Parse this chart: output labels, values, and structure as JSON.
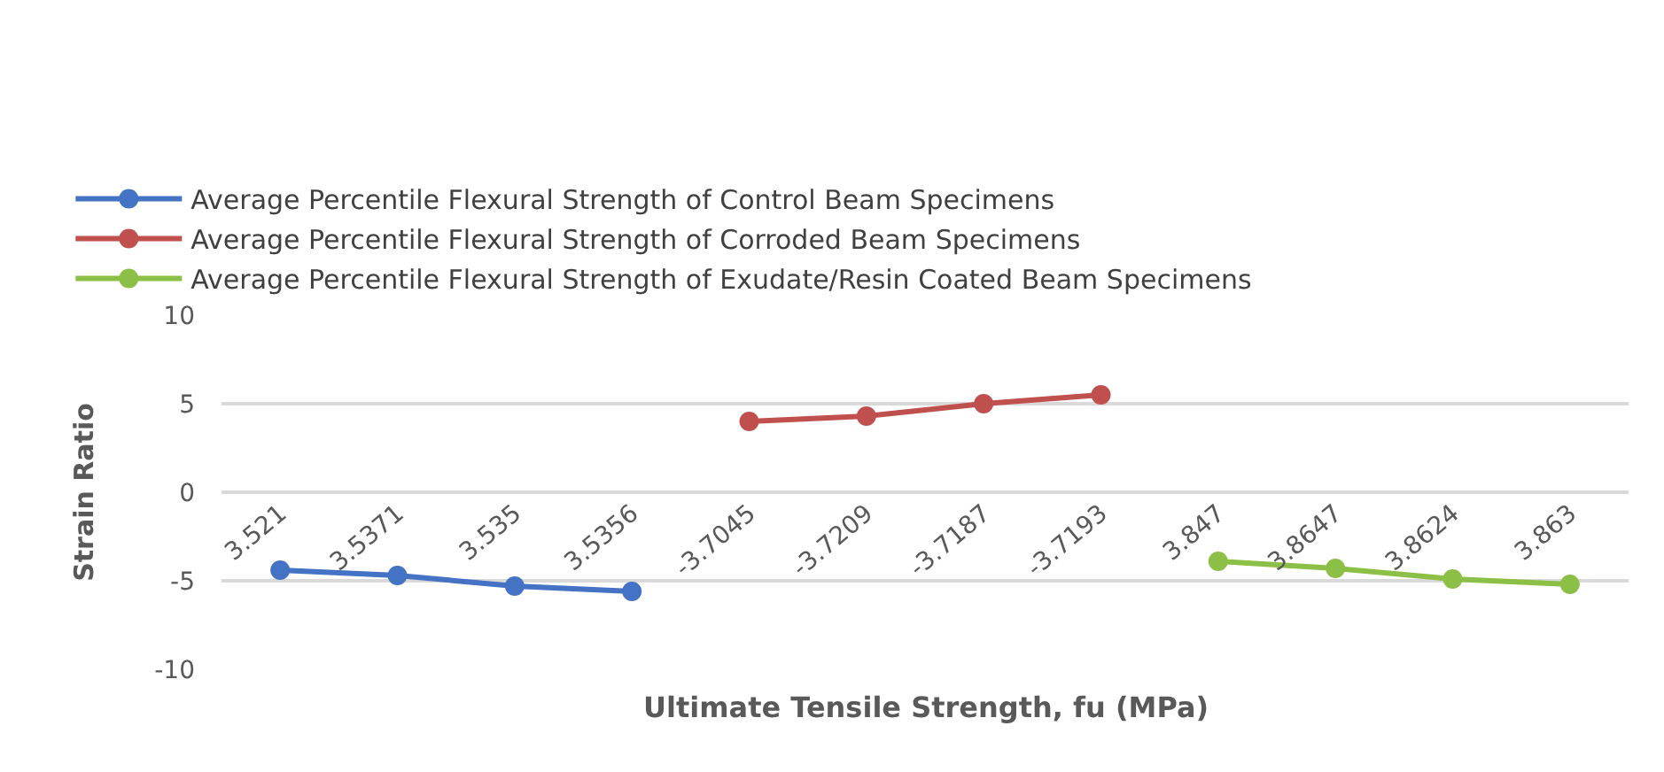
{
  "chart_data": {
    "type": "line",
    "xlabel": "Ultimate Tensile Strength, fu (MPa)",
    "ylabel": "Strain Ratio",
    "categories": [
      "3.521",
      "3.5371",
      "3.535",
      "3.5356",
      "-3.7045",
      "-3.7209",
      "-3.7187",
      "-3.7193",
      "3.847",
      "3.8647",
      "3.8624",
      "3.863"
    ],
    "series": [
      {
        "name": "Average Percentile Flexural Strength of Control Beam Specimens",
        "color": "#4472c4",
        "values": [
          -4.4,
          -4.7,
          -5.3,
          -5.6,
          null,
          null,
          null,
          null,
          null,
          null,
          null,
          null
        ]
      },
      {
        "name": "Average Percentile Flexural Strength of Corroded Beam Specimens",
        "color": "#c0504d",
        "values": [
          null,
          null,
          null,
          null,
          4.0,
          4.3,
          5.0,
          5.5,
          null,
          null,
          null,
          null
        ]
      },
      {
        "name": "Average Percentile Flexural Strength of Exudate/Resin Coated Beam Specimens",
        "color": "#8cbf45",
        "values": [
          null,
          null,
          null,
          null,
          null,
          null,
          null,
          null,
          -3.9,
          -4.3,
          -4.9,
          -5.2
        ]
      }
    ],
    "ylim": [
      -10,
      10
    ],
    "yticks": [
      -10,
      -5,
      0,
      5,
      10
    ],
    "grid": "y",
    "legend": "top",
    "marker": "circle",
    "line_style": "solid"
  }
}
